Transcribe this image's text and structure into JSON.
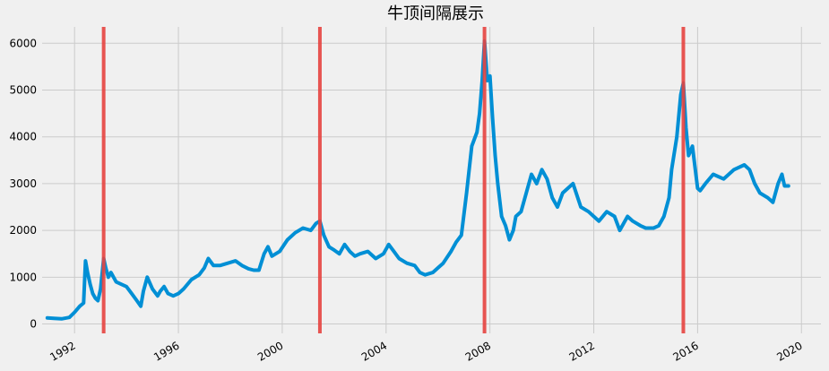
{
  "chart_data": {
    "type": "line",
    "title": "牛顶间隔展示",
    "xlabel": "",
    "ylabel": "",
    "xlim": [
      1990.75,
      2020.75
    ],
    "ylim": [
      -200,
      6350
    ],
    "grid": true,
    "x_ticks": [
      1992,
      1996,
      2000,
      2004,
      2008,
      2012,
      2016,
      2020
    ],
    "y_ticks": [
      0,
      1000,
      2000,
      3000,
      4000,
      5000,
      6000
    ],
    "colors": {
      "line": "#008fd5",
      "vline": "#e5423f",
      "grid": "#cbcbcb",
      "background": "#f0f0f0"
    },
    "vlines": [
      1993.12,
      2001.45,
      2007.79,
      2015.45
    ],
    "series": [
      {
        "x": [
          1990.95,
          1991.2,
          1991.5,
          1991.8,
          1992.0,
          1992.2,
          1992.35,
          1992.42,
          1992.5,
          1992.6,
          1992.7,
          1992.8,
          1992.9,
          1993.0,
          1993.12,
          1993.2,
          1993.3,
          1993.4,
          1993.5,
          1993.6,
          1993.8,
          1994.0,
          1994.2,
          1994.4,
          1994.55,
          1994.65,
          1994.8,
          1995.0,
          1995.2,
          1995.3,
          1995.45,
          1995.6,
          1995.8,
          1996.0,
          1996.2,
          1996.5,
          1996.8,
          1997.0,
          1997.15,
          1997.35,
          1997.6,
          1997.9,
          1998.2,
          1998.45,
          1998.7,
          1998.9,
          1999.1,
          1999.3,
          1999.45,
          1999.6,
          1999.9,
          2000.2,
          2000.5,
          2000.8,
          2001.1,
          2001.3,
          2001.45,
          2001.6,
          2001.8,
          2002.0,
          2002.2,
          2002.4,
          2002.6,
          2002.8,
          2003.0,
          2003.3,
          2003.6,
          2003.9,
          2004.1,
          2004.3,
          2004.5,
          2004.8,
          2005.1,
          2005.3,
          2005.5,
          2005.8,
          2006.0,
          2006.2,
          2006.5,
          2006.7,
          2006.9,
          2007.1,
          2007.3,
          2007.5,
          2007.6,
          2007.7,
          2007.79,
          2007.9,
          2008.0,
          2008.1,
          2008.2,
          2008.3,
          2008.45,
          2008.6,
          2008.75,
          2008.9,
          2009.0,
          2009.2,
          2009.4,
          2009.6,
          2009.8,
          2010.0,
          2010.2,
          2010.4,
          2010.6,
          2010.8,
          2011.0,
          2011.2,
          2011.5,
          2011.8,
          2012.0,
          2012.2,
          2012.5,
          2012.8,
          2013.0,
          2013.3,
          2013.5,
          2013.8,
          2014.0,
          2014.3,
          2014.5,
          2014.7,
          2014.9,
          2015.0,
          2015.2,
          2015.35,
          2015.45,
          2015.55,
          2015.65,
          2015.8,
          2016.0,
          2016.1,
          2016.3,
          2016.6,
          2017.0,
          2017.4,
          2017.8,
          2018.0,
          2018.2,
          2018.4,
          2018.7,
          2018.9,
          2019.1,
          2019.25,
          2019.35,
          2019.5
        ],
        "y": [
          130,
          120,
          110,
          140,
          250,
          380,
          450,
          1350,
          1100,
          850,
          650,
          550,
          500,
          750,
          1400,
          1200,
          1000,
          1100,
          1000,
          900,
          850,
          800,
          650,
          500,
          380,
          700,
          1000,
          750,
          600,
          700,
          800,
          650,
          600,
          650,
          750,
          950,
          1050,
          1200,
          1400,
          1250,
          1250,
          1300,
          1350,
          1250,
          1180,
          1150,
          1150,
          1500,
          1650,
          1450,
          1550,
          1800,
          1950,
          2050,
          2000,
          2150,
          2200,
          1900,
          1650,
          1580,
          1500,
          1700,
          1550,
          1450,
          1500,
          1550,
          1400,
          1500,
          1700,
          1550,
          1400,
          1300,
          1250,
          1100,
          1050,
          1100,
          1200,
          1300,
          1550,
          1750,
          1900,
          2800,
          3800,
          4100,
          4500,
          5200,
          6050,
          5200,
          5300,
          4400,
          3600,
          3000,
          2300,
          2100,
          1800,
          2000,
          2300,
          2400,
          2800,
          3200,
          3000,
          3300,
          3100,
          2700,
          2500,
          2800,
          2900,
          3000,
          2500,
          2400,
          2300,
          2200,
          2400,
          2300,
          2000,
          2300,
          2200,
          2100,
          2050,
          2050,
          2100,
          2300,
          2700,
          3300,
          4000,
          4900,
          5150,
          4200,
          3600,
          3800,
          2900,
          2850,
          3000,
          3200,
          3100,
          3300,
          3400,
          3300,
          3000,
          2800,
          2700,
          2600,
          3000,
          3200,
          2950,
          2950
        ]
      }
    ]
  }
}
